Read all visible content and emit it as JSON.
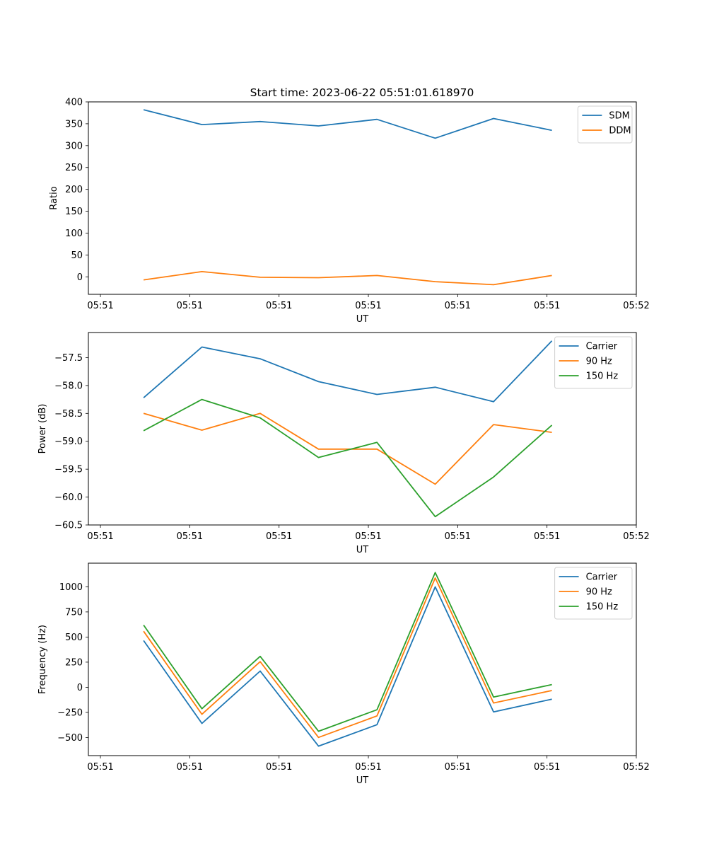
{
  "chart_data": [
    {
      "type": "line",
      "title": "Start time: 2023-06-22 05:51:01.618970",
      "xlabel": "UT",
      "ylabel": "Ratio",
      "x_seconds_after_0551": [
        4.83,
        11.36,
        17.89,
        24.42,
        30.96,
        37.49,
        44.02,
        50.55
      ],
      "xlim": [
        -1.35,
        60
      ],
      "x_ticks": [
        0,
        10,
        20,
        30,
        40,
        50,
        60
      ],
      "x_tick_labels": [
        "05:51",
        "05:51",
        "05:51",
        "05:51",
        "05:51",
        "05:51",
        "05:52"
      ],
      "ylim": [
        -40,
        400
      ],
      "y_ticks": [
        0,
        50,
        100,
        150,
        200,
        250,
        300,
        350,
        400
      ],
      "y_tick_labels": [
        "0",
        "50",
        "100",
        "150",
        "200",
        "250",
        "300",
        "350",
        "400"
      ],
      "legend_position": "top-right",
      "series": [
        {
          "name": "SDM",
          "color": "#1f77b4",
          "values": [
            382,
            348,
            355,
            345,
            360,
            317,
            362,
            335
          ]
        },
        {
          "name": "DDM",
          "color": "#ff7f0e",
          "values": [
            -7,
            12,
            -1,
            -2,
            3,
            -11,
            -18,
            3
          ]
        }
      ]
    },
    {
      "type": "line",
      "title": "",
      "xlabel": "UT",
      "ylabel": "Power (dB)",
      "x_seconds_after_0551": [
        4.83,
        11.36,
        17.89,
        24.42,
        30.96,
        37.49,
        44.02,
        50.55
      ],
      "xlim": [
        -1.35,
        60
      ],
      "x_ticks": [
        0,
        10,
        20,
        30,
        40,
        50,
        60
      ],
      "x_tick_labels": [
        "05:51",
        "05:51",
        "05:51",
        "05:51",
        "05:51",
        "05:51",
        "05:52"
      ],
      "ylim": [
        -60.5,
        -57.05
      ],
      "y_ticks": [
        -60.5,
        -60.0,
        -59.5,
        -59.0,
        -58.5,
        -58.0,
        -57.5
      ],
      "y_tick_labels": [
        "−60.5",
        "−60.0",
        "−59.5",
        "−59.0",
        "−58.5",
        "−58.0",
        "−57.5"
      ],
      "legend_position": "top-right",
      "series": [
        {
          "name": "Carrier",
          "color": "#1f77b4",
          "values": [
            -58.22,
            -57.31,
            -57.52,
            -57.93,
            -58.16,
            -58.03,
            -58.29,
            -57.2
          ]
        },
        {
          "name": "90 Hz",
          "color": "#ff7f0e",
          "values": [
            -58.5,
            -58.8,
            -58.5,
            -59.14,
            -59.14,
            -59.77,
            -58.7,
            -58.84
          ]
        },
        {
          "name": "150 Hz",
          "color": "#2ca02c",
          "values": [
            -58.81,
            -58.25,
            -58.58,
            -59.29,
            -59.02,
            -60.35,
            -59.64,
            -58.71
          ]
        }
      ]
    },
    {
      "type": "line",
      "title": "",
      "xlabel": "UT",
      "ylabel": "Frequency (Hz)",
      "x_seconds_after_0551": [
        4.83,
        11.36,
        17.89,
        24.42,
        30.96,
        37.49,
        44.02,
        50.55
      ],
      "xlim": [
        -1.35,
        60
      ],
      "x_ticks": [
        0,
        10,
        20,
        30,
        40,
        50,
        60
      ],
      "x_tick_labels": [
        "05:51",
        "05:51",
        "05:51",
        "05:51",
        "05:51",
        "05:51",
        "05:52"
      ],
      "ylim": [
        -680,
        1235
      ],
      "y_ticks": [
        -500,
        -250,
        0,
        250,
        500,
        750,
        1000
      ],
      "y_tick_labels": [
        "−500",
        "−250",
        "0",
        "250",
        "500",
        "750",
        "1000"
      ],
      "legend_position": "top-right",
      "series": [
        {
          "name": "Carrier",
          "color": "#1f77b4",
          "values": [
            465,
            -360,
            161,
            -586,
            -372,
            999,
            -245,
            -118
          ]
        },
        {
          "name": "90 Hz",
          "color": "#ff7f0e",
          "values": [
            558,
            -269,
            255,
            -499,
            -285,
            1088,
            -156,
            -32
          ]
        },
        {
          "name": "150 Hz",
          "color": "#2ca02c",
          "values": [
            619,
            -213,
            308,
            -438,
            -224,
            1142,
            -97,
            27
          ]
        }
      ]
    }
  ]
}
